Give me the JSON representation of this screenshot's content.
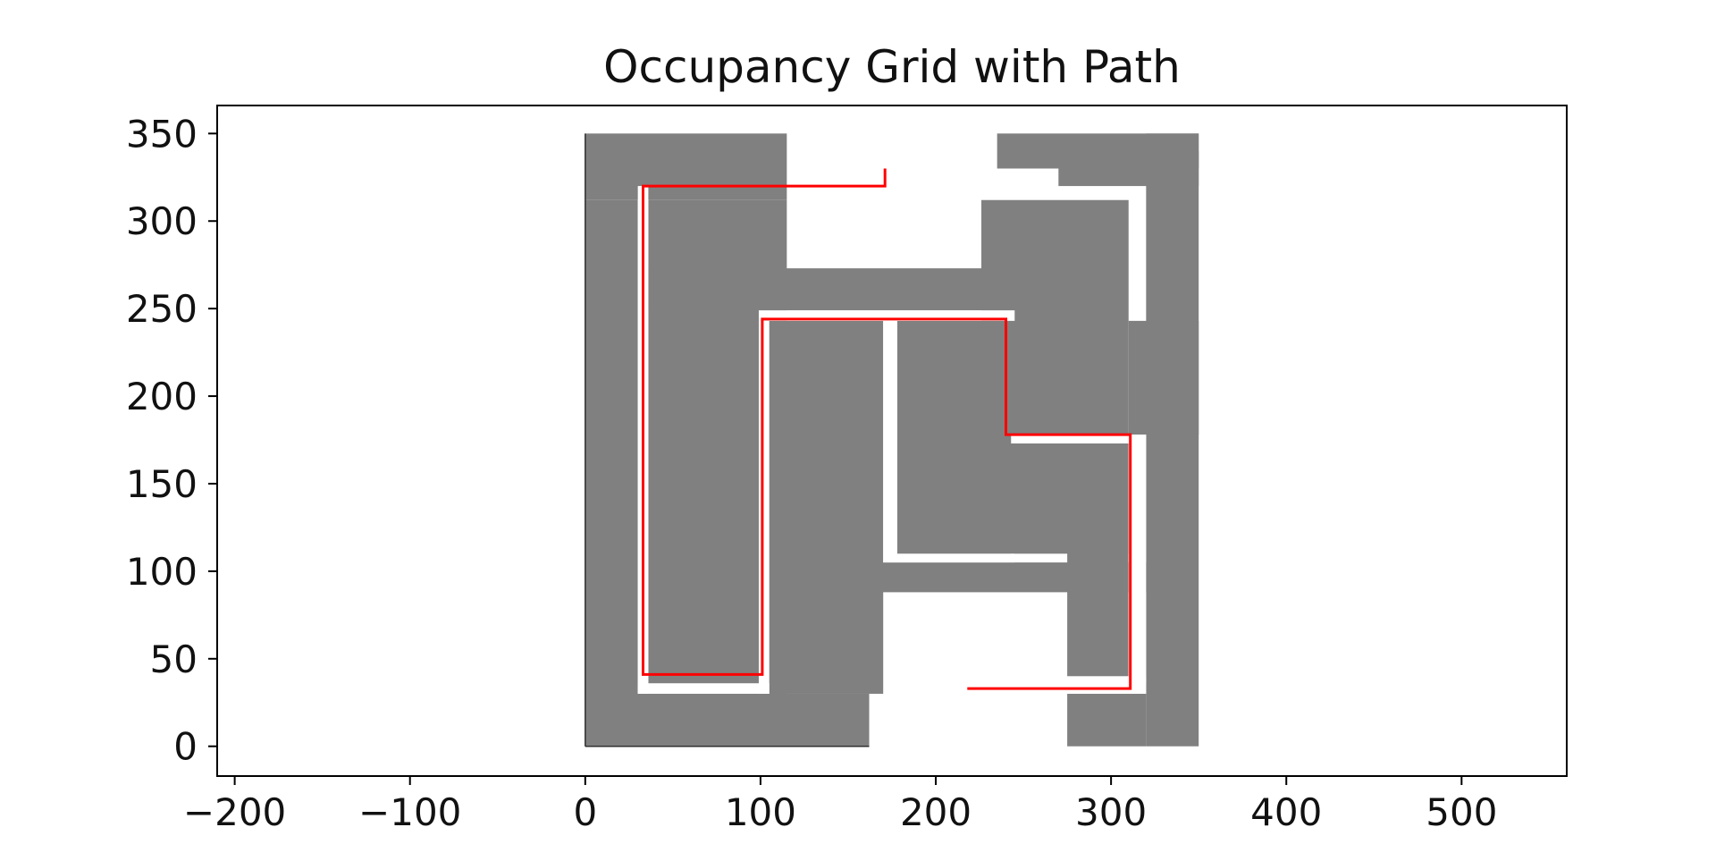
{
  "chart_data": {
    "type": "heatmap",
    "title": "Occupancy Grid with Path",
    "xlabel": "",
    "ylabel": "",
    "xlim": [
      -210,
      560
    ],
    "ylim": [
      -17,
      366
    ],
    "xticks": [
      -200,
      -100,
      0,
      100,
      200,
      300,
      400,
      500
    ],
    "xtick_labels": [
      "−200",
      "−100",
      "0",
      "100",
      "200",
      "300",
      "400",
      "500"
    ],
    "yticks": [
      0,
      50,
      100,
      150,
      200,
      250,
      300,
      350
    ],
    "ytick_labels": [
      "0",
      "50",
      "100",
      "150",
      "200",
      "250",
      "300",
      "350"
    ],
    "grid": false,
    "colors": {
      "occupied": "#808080",
      "free": "#ffffff",
      "path": "#ff0000",
      "axes": "#000000"
    },
    "occupied_cells": [
      {
        "x0": 0,
        "x1": 115,
        "y0": 312,
        "y1": 350
      },
      {
        "x0": 0,
        "x1": 30,
        "y0": 0,
        "y1": 312
      },
      {
        "x0": 0,
        "x1": 162,
        "y0": 0,
        "y1": 30
      },
      {
        "x0": 36,
        "x1": 115,
        "y0": 30,
        "y1": 312
      },
      {
        "x0": 36,
        "x1": 252,
        "y0": 249,
        "y1": 273
      },
      {
        "x0": 105,
        "x1": 170,
        "y0": 30,
        "y1": 243
      },
      {
        "x0": 162,
        "x1": 320,
        "y0": 88,
        "y1": 105
      },
      {
        "x0": 178,
        "x1": 243,
        "y0": 110,
        "y1": 243
      },
      {
        "x0": 178,
        "x1": 310,
        "y0": 110,
        "y1": 173
      },
      {
        "x0": 275,
        "x1": 310,
        "y0": 40,
        "y1": 173
      },
      {
        "x0": 235,
        "x1": 350,
        "y0": 330,
        "y1": 350
      },
      {
        "x0": 270,
        "x1": 350,
        "y0": 320,
        "y1": 340
      },
      {
        "x0": 226,
        "x1": 310,
        "y0": 178,
        "y1": 312
      },
      {
        "x0": 310,
        "x1": 350,
        "y0": 178,
        "y1": 243
      },
      {
        "x0": 320,
        "x1": 350,
        "y0": 0,
        "y1": 350
      },
      {
        "x0": 275,
        "x1": 320,
        "y0": 0,
        "y1": 30
      }
    ],
    "free_cells": [
      {
        "x0": 30,
        "x1": 36,
        "y0": 30,
        "y1": 320
      },
      {
        "x0": 30,
        "x1": 105,
        "y0": 30,
        "y1": 36
      },
      {
        "x0": 99,
        "x1": 105,
        "y0": 30,
        "y1": 243
      },
      {
        "x0": 99,
        "x1": 245,
        "y0": 243,
        "y1": 249
      },
      {
        "x0": 170,
        "x1": 178,
        "y0": 110,
        "y1": 243
      },
      {
        "x0": 170,
        "x1": 245,
        "y0": 105,
        "y1": 110
      },
      {
        "x0": 243,
        "x1": 310,
        "y0": 173,
        "y1": 178
      },
      {
        "x0": 310,
        "x1": 320,
        "y0": 36,
        "y1": 178
      },
      {
        "x0": 275,
        "x1": 320,
        "y0": 30,
        "y1": 40
      }
    ],
    "series": [
      {
        "x": [
          171,
          171,
          33,
          33,
          101,
          101,
          240,
          240,
          311,
          311,
          218
        ],
        "y": [
          330,
          320,
          320,
          41,
          41,
          244,
          244,
          178,
          178,
          33,
          33
        ]
      }
    ]
  }
}
